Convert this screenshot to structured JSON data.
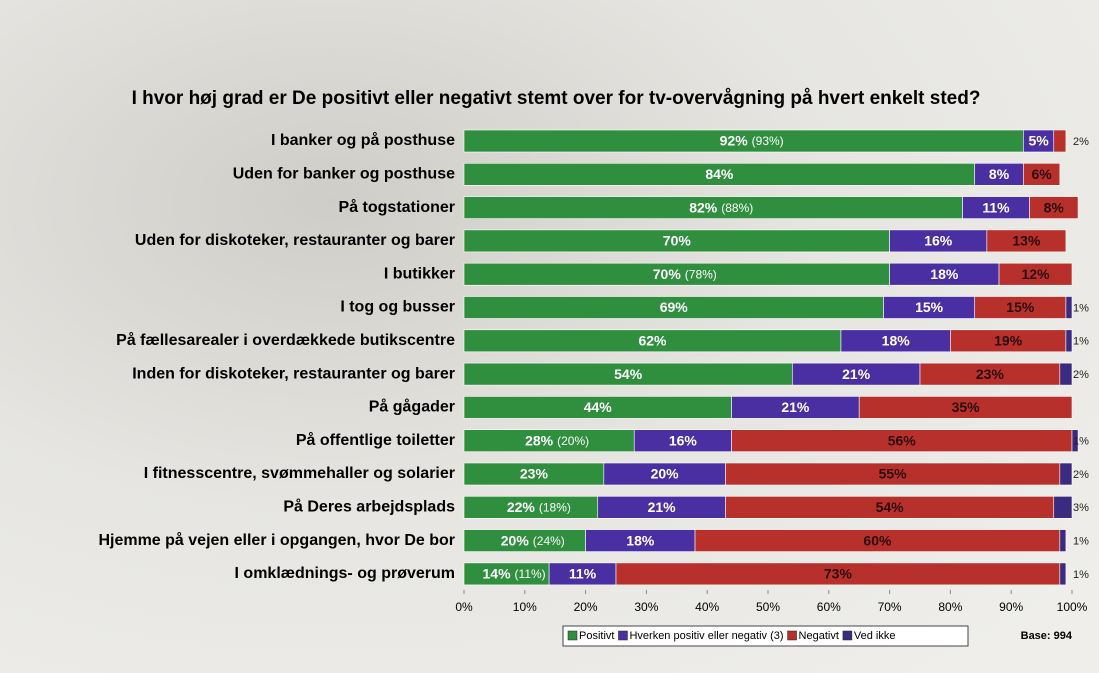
{
  "chart_data": {
    "type": "stacked_barh",
    "title": "I hvor høj grad er De positivt eller negativt stemt over for tv-overvågning på hvert enkelt sted?",
    "categories": [
      "I banker og på posthuse",
      "Uden for banker og posthuse",
      "På togstationer",
      "Uden for diskoteker, restauranter og barer",
      "I butikker",
      "I tog og busser",
      "På fællesarealer i overdækkede butikscentre",
      "Inden for diskoteker, restauranter og barer",
      "På gågader",
      "På offentlige toiletter",
      "I fitnesscentre, svømmehaller og solarier",
      "På Deres arbejdsplads",
      "Hjemme på vejen eller i opgangen, hvor De bor",
      "I omklædnings- og prøverum"
    ],
    "series": [
      {
        "name": "Positivt",
        "color": "#2f8f3f",
        "values": [
          92,
          84,
          82,
          70,
          70,
          69,
          62,
          54,
          44,
          28,
          23,
          22,
          20,
          14
        ],
        "value_labels": [
          "92%",
          "84%",
          "82%",
          "70%",
          "70%",
          "69%",
          "62%",
          "54%",
          "44%",
          "28%",
          "23%",
          "22%",
          "20%",
          "14%"
        ]
      },
      {
        "name": "Hverken positiv eller negativ (3)",
        "color": "#4a2fa3",
        "values": [
          5,
          8,
          11,
          16,
          18,
          15,
          18,
          21,
          21,
          16,
          20,
          21,
          18,
          11
        ],
        "value_labels": [
          "5%",
          "8%",
          "11%",
          "16%",
          "18%",
          "15%",
          "18%",
          "21%",
          "21%",
          "16%",
          "20%",
          "21%",
          "18%",
          "11%"
        ]
      },
      {
        "name": "Negativt",
        "color": "#b8302c",
        "values": [
          2,
          6,
          8,
          13,
          12,
          15,
          19,
          23,
          35,
          56,
          55,
          54,
          60,
          73
        ],
        "value_labels": [
          "2%",
          "6%",
          "8%",
          "13%",
          "12%",
          "15%",
          "19%",
          "23%",
          "35%",
          "56%",
          "55%",
          "54%",
          "60%",
          "73%"
        ]
      },
      {
        "name": "Ved ikke",
        "color": "#3a2a80",
        "values": [
          null,
          null,
          null,
          null,
          null,
          1,
          1,
          2,
          null,
          1,
          2,
          3,
          1,
          1
        ],
        "value_labels": [
          null,
          null,
          null,
          null,
          null,
          "1%",
          "1%",
          "2%",
          null,
          "1%",
          "2%",
          "3%",
          "1%",
          "1%"
        ]
      }
    ],
    "comparison_labels": [
      "(93%)",
      null,
      "(88%)",
      null,
      "(78%)",
      null,
      null,
      null,
      null,
      "(20%)",
      null,
      "(18%)",
      "(24%)",
      "(11%)"
    ],
    "xlim": [
      0,
      100
    ],
    "xticks": [
      {
        "value": 0,
        "label": "0%"
      },
      {
        "value": 10,
        "label": "10%"
      },
      {
        "value": 20,
        "label": "20%"
      },
      {
        "value": 30,
        "label": "30%"
      },
      {
        "value": 40,
        "label": "40%"
      },
      {
        "value": 50,
        "label": "50%"
      },
      {
        "value": 60,
        "label": "60%"
      },
      {
        "value": 70,
        "label": "70%"
      },
      {
        "value": 80,
        "label": "80%"
      },
      {
        "value": 90,
        "label": "90%"
      },
      {
        "value": 100,
        "label": "100%"
      }
    ],
    "legend": "bottom",
    "note": "Base: 994"
  }
}
